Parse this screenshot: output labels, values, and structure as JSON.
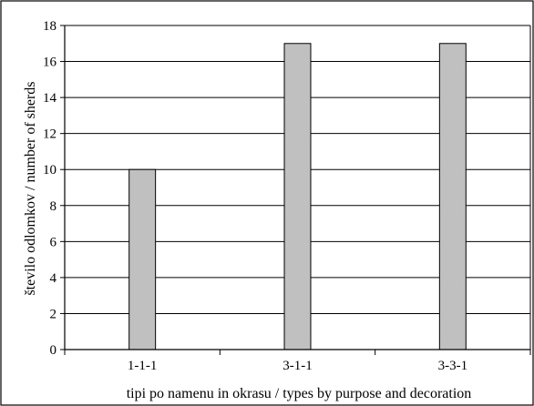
{
  "chart_data": {
    "type": "bar",
    "categories": [
      "1-1-1",
      "3-1-1",
      "3-3-1"
    ],
    "values": [
      10,
      17,
      17
    ],
    "xlabel": "tipi po namenu in okrasu / types by purpose and decoration",
    "ylabel": "število odlomkov / number of sherds",
    "ylim": [
      0,
      18
    ],
    "yticks": [
      0,
      2,
      4,
      6,
      8,
      10,
      12,
      14,
      16,
      18
    ],
    "grid": true,
    "bar_color": "#c0c0c0",
    "legend": "none"
  }
}
